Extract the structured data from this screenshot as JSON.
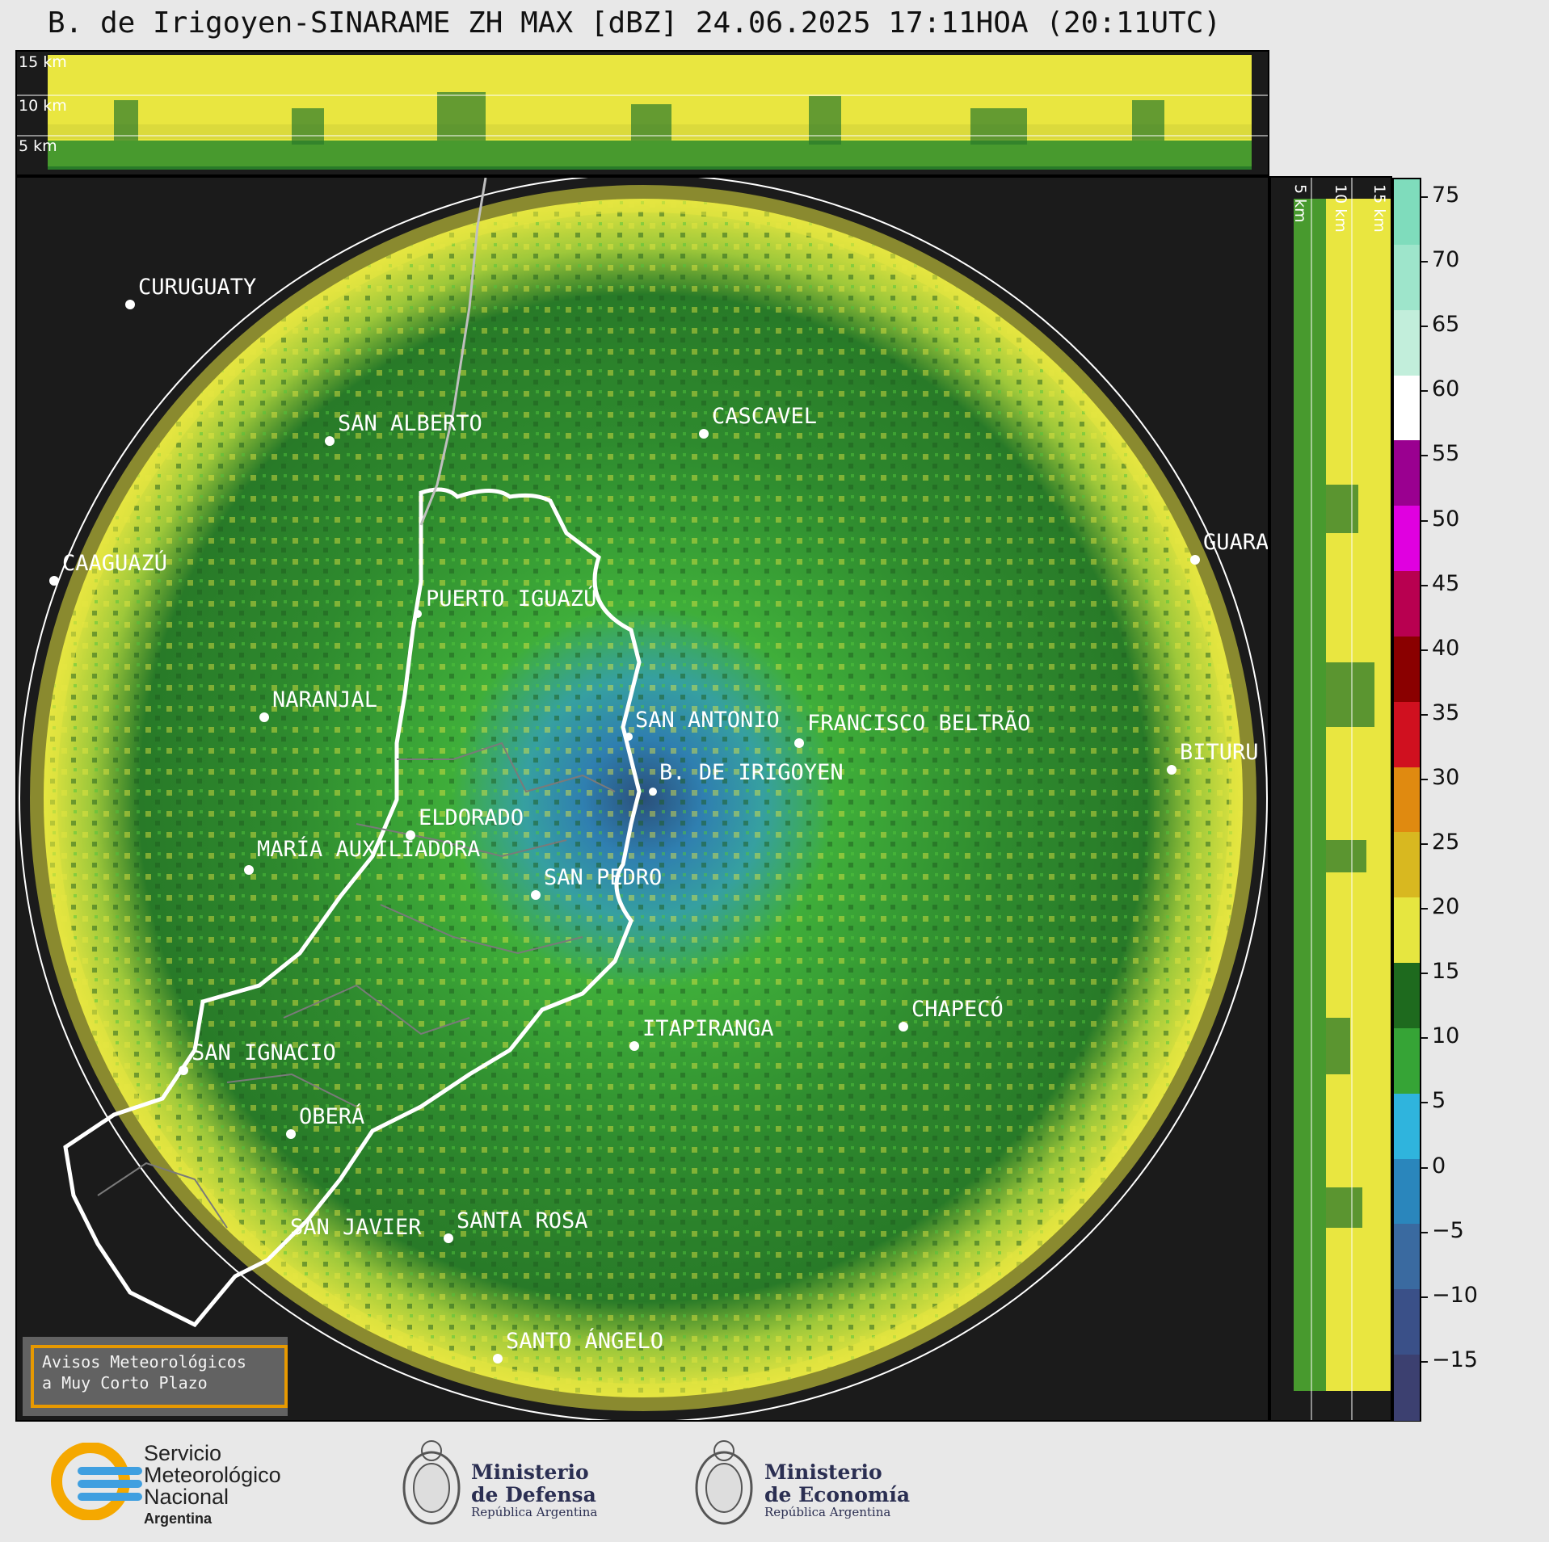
{
  "title": "B. de Irigoyen-SINARAME ZH MAX [dBZ] 24.06.2025 17:11HOA (20:11UTC)",
  "height_labels_top": [
    "15 km",
    "10 km",
    "5 km"
  ],
  "height_labels_side": [
    "5 km",
    "10 km",
    "15 km"
  ],
  "cities": [
    {
      "name": "CURUGUATY"
    },
    {
      "name": "SAN ALBERTO"
    },
    {
      "name": "CASCAVEL"
    },
    {
      "name": "CAAGUAZÚ"
    },
    {
      "name": "GUARA"
    },
    {
      "name": "PUERTO IGUAZÚ"
    },
    {
      "name": "NARANJAL"
    },
    {
      "name": "SAN ANTONIO"
    },
    {
      "name": "FRANCISCO BELTRÃO"
    },
    {
      "name": "B. DE IRIGOYEN"
    },
    {
      "name": "BITURU"
    },
    {
      "name": "ELDORADO"
    },
    {
      "name": "MARÍA AUXILIADORA"
    },
    {
      "name": "SAN PEDRO"
    },
    {
      "name": "CHAPECÓ"
    },
    {
      "name": "ITAPIRANGA"
    },
    {
      "name": "SAN IGNACIO"
    },
    {
      "name": "OBERÁ"
    },
    {
      "name": "SAN JAVIER"
    },
    {
      "name": "SANTA ROSA"
    },
    {
      "name": "SANTO ÁNGELO"
    }
  ],
  "notice": {
    "line1": "Avisos Meteorológicos",
    "line2": "a Muy Corto Plazo"
  },
  "colorbar": {
    "ticks": [
      "75",
      "70",
      "65",
      "60",
      "55",
      "50",
      "45",
      "40",
      "35",
      "30",
      "25",
      "20",
      "15",
      "10",
      "5",
      "0",
      "−5",
      "−10",
      "−15"
    ],
    "colors": [
      "#7fdcbc",
      "#9ee5cb",
      "#c2eedb",
      "#ffffff",
      "#9a0090",
      "#e000e0",
      "#b80050",
      "#8a0000",
      "#d0101f",
      "#e08a10",
      "#d8b820",
      "#e6e640",
      "#1e6a1e",
      "#36a436",
      "#2fb4dd",
      "#2a86bc",
      "#3a6aa0",
      "#3a5088",
      "#3c4070"
    ]
  },
  "logos": {
    "smn": {
      "line1": "Servicio",
      "line2": "Meteorológico",
      "line3": "Nacional",
      "line4": "Argentina"
    },
    "defensa": {
      "line1": "Ministerio",
      "line2": "de Defensa",
      "line3": "República Argentina"
    },
    "economia": {
      "line1": "Ministerio",
      "line2": "de Economía",
      "line3": "República Argentina"
    }
  }
}
